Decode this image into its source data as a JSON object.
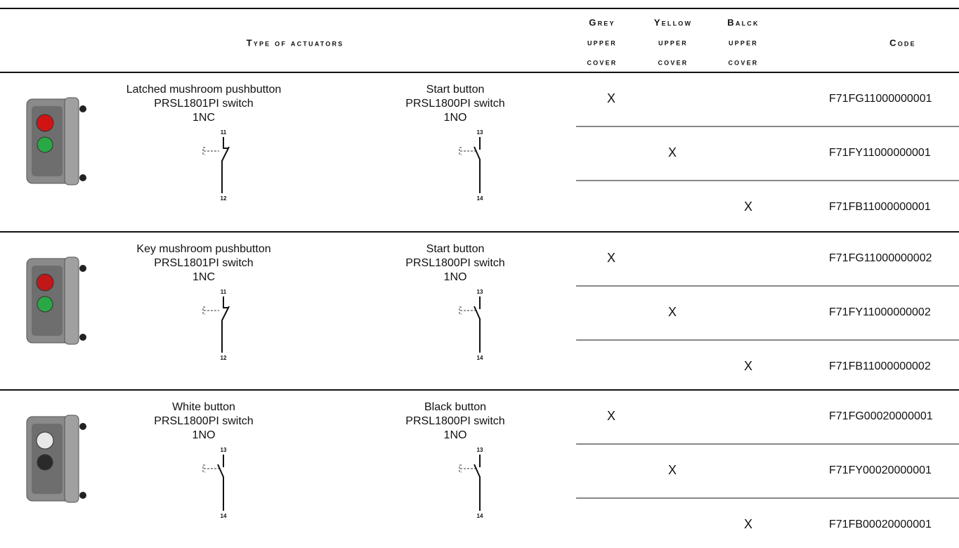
{
  "header": {
    "type": "Type of actuators",
    "grey": [
      "Grey",
      "upper",
      "cover"
    ],
    "yellow": [
      "Yellow",
      "upper",
      "cover"
    ],
    "black": [
      "Balck",
      "upper",
      "cover"
    ],
    "code": "Code"
  },
  "groups": [
    {
      "left": {
        "name": "Latched mushroom pushbutton",
        "switch": "PRSL1801PI switch",
        "contact": "1NC",
        "terminals": [
          "11",
          "12"
        ]
      },
      "right": {
        "name": "Start button",
        "switch": "PRSL1800PI switch",
        "contact": "1NO",
        "terminals": [
          "13",
          "14"
        ]
      },
      "rows": [
        {
          "grey": "X",
          "code": "F71FG11000000001"
        },
        {
          "yellow": "X",
          "code": "F71FY11000000001"
        },
        {
          "black": "X",
          "code": "F71FB11000000001"
        }
      ]
    },
    {
      "left": {
        "name": "Key mushroom pushbutton",
        "switch": "PRSL1801PI switch",
        "contact": "1NC",
        "terminals": [
          "11",
          "12"
        ]
      },
      "right": {
        "name": "Start button",
        "switch": "PRSL1800PI switch",
        "contact": "1NO",
        "terminals": [
          "13",
          "14"
        ]
      },
      "rows": [
        {
          "grey": "X",
          "code": "F71FG11000000002"
        },
        {
          "yellow": "X",
          "code": "F71FY11000000002"
        },
        {
          "black": "X",
          "code": "F71FB11000000002"
        }
      ]
    },
    {
      "left": {
        "name": "White button",
        "switch": "PRSL1800PI switch",
        "contact": "1NO",
        "terminals": [
          "13",
          "14"
        ]
      },
      "right": {
        "name": "Black button",
        "switch": "PRSL1800PI switch",
        "contact": "1NO",
        "terminals": [
          "13",
          "14"
        ]
      },
      "rows": [
        {
          "grey": "X",
          "code": "F71FG00020000001"
        },
        {
          "yellow": "X",
          "code": "F71FY00020000001"
        },
        {
          "black": "X",
          "code": "F71FB00020000001"
        }
      ]
    }
  ]
}
